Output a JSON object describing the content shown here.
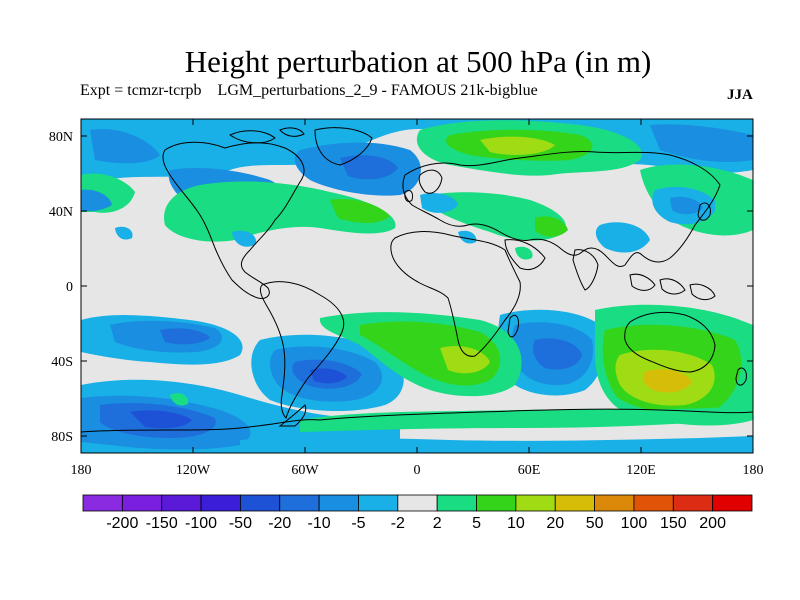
{
  "title": "Height perturbation at 500 hPa (in m)",
  "experiment": "Expt = tcmzr-tcrpb",
  "dataset": "LGM_perturbations_2_9 - FAMOUS 21k-bigblue",
  "season": "JJA",
  "map": {
    "lat_ticks": [
      "80N",
      "40N",
      "0",
      "40S",
      "80S"
    ],
    "lon_ticks": [
      "180",
      "120W",
      "60W",
      "0",
      "60E",
      "120E",
      "180"
    ]
  },
  "colorbar": {
    "labels": [
      "-200",
      "-150",
      "-100",
      "-50",
      "-20",
      "-10",
      "-5",
      "-2",
      "2",
      "5",
      "10",
      "20",
      "50",
      "100",
      "150",
      "200"
    ],
    "colors": [
      "#8a2be2",
      "#7a1fe0",
      "#5a1ad8",
      "#3a1ed8",
      "#1e52d6",
      "#1e6edc",
      "#1a8ee0",
      "#18b0e6",
      "#e6e6e6",
      "#1adc82",
      "#34d41a",
      "#a0dc14",
      "#d6be08",
      "#dc8808",
      "#e05408",
      "#dc2c14",
      "#e00000"
    ]
  },
  "anomalies": [
    {
      "name": "n-pacific-low",
      "color": "#1a8ee0"
    },
    {
      "name": "siberian-high",
      "color": "#a0dc14"
    },
    {
      "name": "s-pacific-low",
      "color": "#1e6edc"
    },
    {
      "name": "australia-high",
      "color": "#d6be08"
    }
  ]
}
